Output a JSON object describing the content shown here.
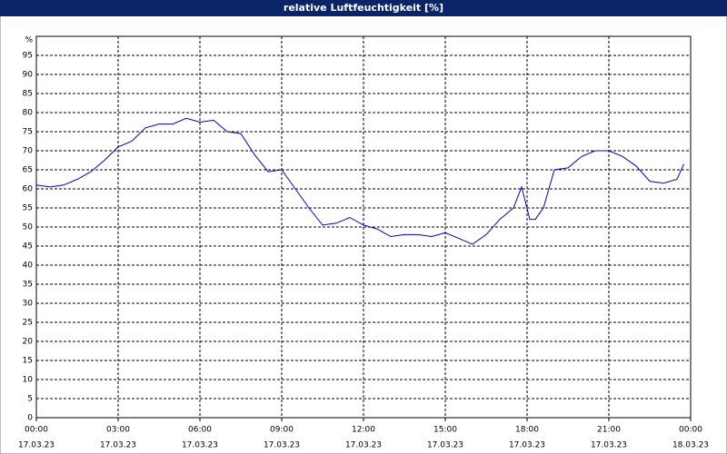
{
  "chart_data": {
    "type": "line",
    "title": "relative Luftfeuchtigkeit [%]",
    "y_unit": "%",
    "x": [
      0,
      0.5,
      1,
      1.5,
      2,
      2.5,
      3,
      3.5,
      4,
      4.5,
      5,
      5.5,
      6,
      6.5,
      7,
      7.5,
      8,
      8.5,
      9,
      9.5,
      10,
      10.5,
      11,
      11.5,
      12,
      12.5,
      13,
      13.5,
      14,
      14.5,
      15,
      15.5,
      16,
      16.5,
      17,
      17.5,
      17.8,
      18.1,
      18.3,
      18.6,
      19,
      19.5,
      20,
      20.5,
      21,
      21.5,
      22,
      22.5,
      23,
      23.5,
      23.75
    ],
    "series": [
      {
        "name": "relative Luftfeuchtigkeit",
        "color": "#0000cc",
        "values": [
          61,
          60.5,
          61,
          62.5,
          64.5,
          67.5,
          71,
          72.5,
          76,
          77,
          77,
          78.5,
          77.5,
          78,
          75,
          74.5,
          69,
          64.5,
          65,
          60,
          55,
          50.5,
          51,
          52.5,
          50.5,
          49.5,
          47.5,
          48,
          48,
          47.5,
          48.5,
          47,
          45.5,
          48,
          52,
          55,
          60.5,
          52,
          52,
          55,
          65,
          65.5,
          68.5,
          70,
          70,
          68.5,
          66,
          62,
          61.5,
          62.5,
          66.5
        ]
      }
    ],
    "xlim": [
      0,
      24
    ],
    "xticks": [
      {
        "value": 0,
        "label": "00:00"
      },
      {
        "value": 3,
        "label": "03:00"
      },
      {
        "value": 6,
        "label": "06:00"
      },
      {
        "value": 9,
        "label": "09:00"
      },
      {
        "value": 12,
        "label": "12:00"
      },
      {
        "value": 15,
        "label": "15:00"
      },
      {
        "value": 18,
        "label": "18:00"
      },
      {
        "value": 21,
        "label": "21:00"
      },
      {
        "value": 24,
        "label": "00:00"
      }
    ],
    "xtick_dates": [
      "17.03.23",
      "17.03.23",
      "17.03.23",
      "17.03.23",
      "17.03.23",
      "17.03.23",
      "17.03.23",
      "17.03.23",
      "18.03.23"
    ],
    "ylim": [
      0,
      100
    ],
    "yticks": [
      0,
      5,
      10,
      15,
      20,
      25,
      30,
      35,
      40,
      45,
      50,
      55,
      60,
      65,
      70,
      75,
      80,
      85,
      90,
      95
    ],
    "grid": true
  }
}
